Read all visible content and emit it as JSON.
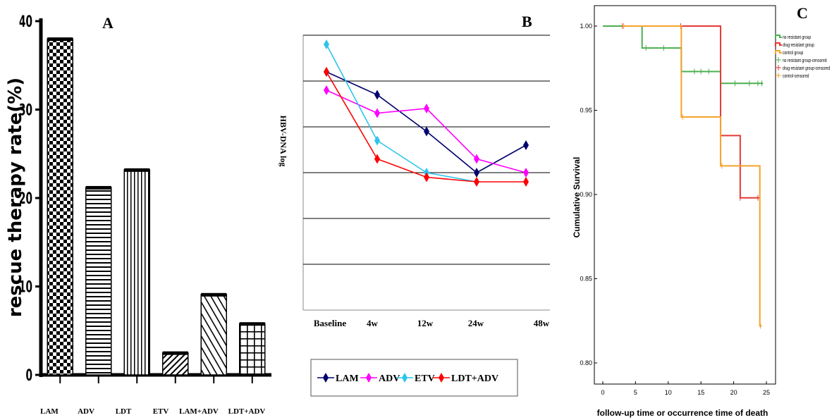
{
  "chart_data": [
    {
      "type": "bar",
      "panel_label": "A",
      "ylabel": "rescue therapy rate(%)",
      "ylim": [
        0,
        40
      ],
      "yticks": [
        "0",
        "10",
        "20",
        "30",
        "40"
      ],
      "categories": [
        "LAM",
        "ADV",
        "LDT",
        "ETV",
        "LAM+ADV",
        "LDT+ADV"
      ],
      "values": [
        38,
        21.2,
        23.2,
        2.5,
        9.1,
        5.8
      ],
      "patterns": [
        "checker",
        "hlines",
        "vlines",
        "diag",
        "diag-wide",
        "grid"
      ],
      "grid": false
    },
    {
      "type": "line",
      "panel_label": "B",
      "ylabel": "HBV-DNA log",
      "categories": [
        "Baseline",
        "4w",
        "12w",
        "24w",
        "48w"
      ],
      "ylim": [
        0,
        6
      ],
      "grid": true,
      "legend_position": "bottom",
      "series": [
        {
          "name": "LAM",
          "color": "#00006e",
          "values": [
            5.2,
            4.7,
            3.9,
            3.0,
            3.6
          ]
        },
        {
          "name": "ADV",
          "color": "#ff00ff",
          "values": [
            4.8,
            4.3,
            4.4,
            3.3,
            3.0
          ]
        },
        {
          "name": "ETV",
          "color": "#2ec4ec",
          "values": [
            5.8,
            3.7,
            3.0,
            2.8,
            null
          ]
        },
        {
          "name": "LDT+ADV",
          "color": "#ff0000",
          "values": [
            5.2,
            3.3,
            2.9,
            2.8,
            2.8
          ]
        }
      ]
    },
    {
      "type": "line",
      "subtype": "step",
      "panel_label": "C",
      "xlabel": "follow-up time or occurrence time of death",
      "ylabel": "Cumulative Survival",
      "xlim": [
        0,
        25
      ],
      "ylim": [
        0.8,
        1.0
      ],
      "xticks": [
        "0",
        "5",
        "10",
        "15",
        "20",
        "25"
      ],
      "yticks": [
        "0.80",
        "0.85",
        "0.90",
        "0.95",
        "1.00"
      ],
      "legend_position": "top-right",
      "legend": [
        "no resistant group",
        "drug-resistant group",
        "control group",
        "no resistant group-censored",
        "drug-resistant group-censored",
        "control-censored"
      ],
      "series": [
        {
          "name": "no resistant group",
          "color": "#4caf50",
          "steps": [
            [
              0,
              1.0
            ],
            [
              6,
              0.987
            ],
            [
              12,
              0.973
            ],
            [
              18,
              0.966
            ],
            [
              24.5,
              0.966
            ]
          ],
          "censored": [
            [
              6.6,
              0.987
            ],
            [
              9.3,
              0.987
            ],
            [
              14,
              0.973
            ],
            [
              15,
              0.973
            ],
            [
              16.2,
              0.973
            ],
            [
              20.2,
              0.966
            ],
            [
              22.4,
              0.966
            ],
            [
              23.7,
              0.966
            ],
            [
              24.3,
              0.966
            ]
          ]
        },
        {
          "name": "drug-resistant group",
          "color": "#e53935",
          "steps": [
            [
              3,
              1.0
            ],
            [
              18,
              0.935
            ],
            [
              21,
              0.898
            ],
            [
              24,
              0.898
            ]
          ],
          "censored": [
            [
              3,
              1.0
            ],
            [
              11.9,
              1.0
            ],
            [
              21,
              0.898
            ],
            [
              23.7,
              0.898
            ]
          ]
        },
        {
          "name": "control group",
          "color": "#f5a22d",
          "steps": [
            [
              3,
              1.0
            ],
            [
              12,
              0.946
            ],
            [
              18,
              0.917
            ],
            [
              24,
              0.822
            ],
            [
              24.3,
              0.822
            ]
          ],
          "censored": [
            [
              3.2,
              1.0
            ],
            [
              12.2,
              0.946
            ],
            [
              18.2,
              0.917
            ],
            [
              24.1,
              0.822
            ]
          ]
        }
      ]
    }
  ]
}
